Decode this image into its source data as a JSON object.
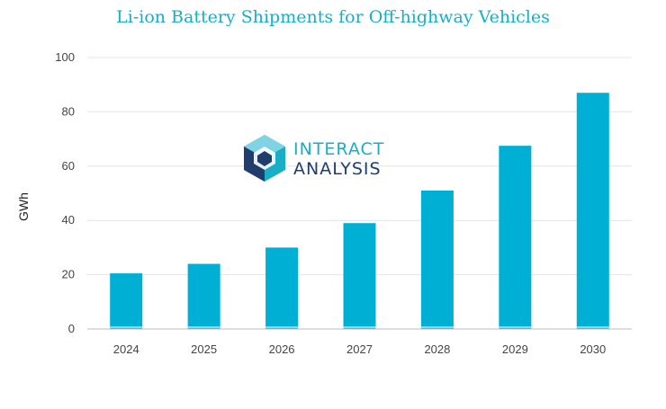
{
  "chart_data": {
    "type": "bar",
    "title": "Li-ion Battery Shipments for Off-highway Vehicles",
    "xlabel": "",
    "ylabel": "GWh",
    "categories": [
      "2024",
      "2025",
      "2026",
      "2027",
      "2028",
      "2029",
      "2030"
    ],
    "values": [
      20.5,
      24,
      30,
      39,
      51,
      67.5,
      87
    ],
    "ylim": [
      0,
      100
    ],
    "yticks": [
      0,
      20,
      40,
      60,
      80,
      100
    ],
    "grid": true,
    "bar_color": "#00b0d4"
  },
  "logo": {
    "line1": "INTERACT",
    "line2": "ANALYSIS",
    "colors": [
      "#1aaec6",
      "#1f3e6e"
    ]
  }
}
